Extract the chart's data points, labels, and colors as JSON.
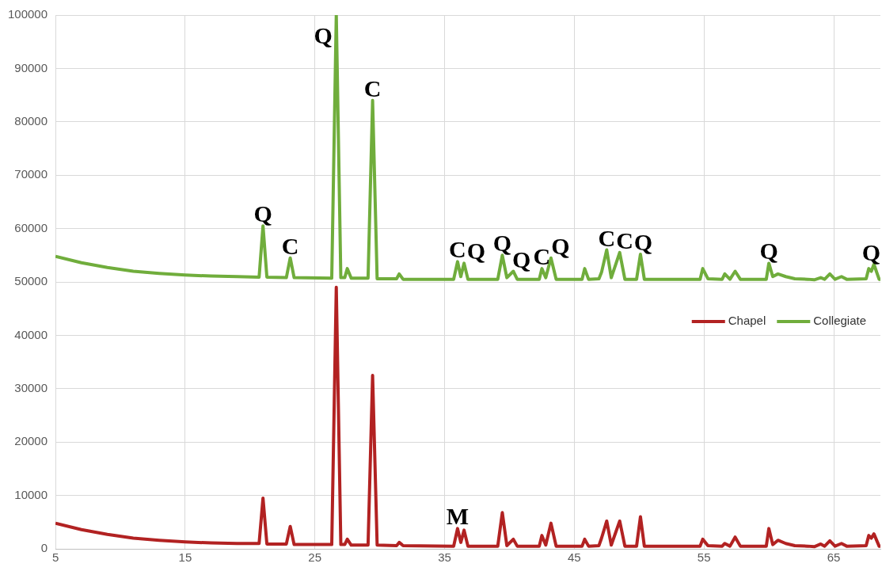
{
  "chart_data": {
    "type": "line",
    "legend": "right",
    "grid": true,
    "marker": "none",
    "line_style": "solid",
    "xlim": [
      5,
      68.6
    ],
    "xticks": [
      5,
      15,
      25,
      35,
      45,
      55,
      65
    ],
    "ylim": [
      0,
      100000
    ],
    "yticks": [
      0,
      10000,
      20000,
      30000,
      40000,
      50000,
      60000,
      70000,
      80000,
      90000,
      100000
    ],
    "x": [
      5,
      7,
      9,
      11,
      13,
      15,
      17,
      19,
      20.7,
      21,
      21.3,
      22.8,
      23.1,
      23.4,
      26.3,
      26.65,
      27.0,
      27.3,
      27.5,
      27.8,
      29.1,
      29.45,
      29.8,
      31.3,
      31.5,
      31.8,
      35.7,
      36.0,
      36.25,
      36.5,
      36.8,
      39.1,
      39.45,
      39.8,
      40.3,
      40.6,
      42.3,
      42.5,
      42.8,
      43.2,
      43.6,
      45.6,
      45.8,
      46.1,
      46.9,
      47.1,
      47.5,
      47.85,
      48.5,
      48.9,
      49.8,
      50.1,
      50.4,
      54.7,
      54.9,
      55.3,
      56.4,
      56.6,
      57.0,
      57.4,
      57.8,
      59.8,
      60.0,
      60.3,
      60.7,
      61.3,
      62,
      63.0,
      63.5,
      64.0,
      64.3,
      64.7,
      65.1,
      65.6,
      66,
      67.5,
      67.7,
      67.9,
      68.1,
      68.5,
      68.6
    ],
    "series": [
      {
        "name": "Chapel",
        "color": "#b22222",
        "values": [
          4800,
          3600,
          2700,
          2000,
          1600,
          1300,
          1100,
          1000,
          1000,
          9500,
          900,
          900,
          4200,
          800,
          800,
          49000,
          800,
          800,
          1800,
          700,
          700,
          32500,
          700,
          600,
          1200,
          600,
          500,
          3800,
          1200,
          3500,
          500,
          500,
          6800,
          600,
          1800,
          500,
          500,
          2500,
          700,
          4800,
          500,
          500,
          1800,
          500,
          600,
          2000,
          5200,
          700,
          5200,
          500,
          500,
          6000,
          500,
          500,
          1800,
          600,
          500,
          1000,
          500,
          2200,
          500,
          500,
          3800,
          800,
          1600,
          1000,
          600,
          500,
          400,
          900,
          500,
          1500,
          500,
          1000,
          500,
          600,
          2500,
          2000,
          2800,
          500,
          500
        ]
      },
      {
        "name": "Collegiate",
        "color": "#70ad3c",
        "values": [
          54800,
          53600,
          52700,
          52000,
          51600,
          51300,
          51100,
          51000,
          50900,
          60500,
          50900,
          50800,
          54500,
          50800,
          50700,
          100000,
          50800,
          50800,
          52500,
          50700,
          50700,
          84000,
          50600,
          50600,
          51500,
          50500,
          50500,
          53800,
          51000,
          53500,
          50500,
          50500,
          55000,
          50800,
          52000,
          50500,
          50500,
          52500,
          50800,
          54500,
          50500,
          50500,
          52500,
          50500,
          50600,
          51800,
          56000,
          50800,
          55500,
          50500,
          50500,
          55200,
          50500,
          50500,
          52500,
          50600,
          50500,
          51500,
          50500,
          52000,
          50500,
          50500,
          53500,
          51000,
          51500,
          51000,
          50600,
          50500,
          50400,
          50800,
          50500,
          51500,
          50500,
          51000,
          50500,
          50600,
          52500,
          52000,
          53300,
          50500,
          50500
        ]
      }
    ],
    "annotations": [
      {
        "text": "Q",
        "x": 21,
        "y": 60500
      },
      {
        "text": "C",
        "x": 23.1,
        "y": 54500
      },
      {
        "text": "Q",
        "x": 26.65,
        "y": 100000
      },
      {
        "text": "C",
        "x": 29.45,
        "y": 84000
      },
      {
        "text": "C",
        "x": 36.0,
        "y": 53800
      },
      {
        "text": "Q",
        "x": 36.5,
        "y": 53500
      },
      {
        "text": "Q",
        "x": 39.45,
        "y": 55000
      },
      {
        "text": "Q",
        "x": 40.3,
        "y": 52000
      },
      {
        "text": "C",
        "x": 42.5,
        "y": 52500
      },
      {
        "text": "Q",
        "x": 43.2,
        "y": 54500
      },
      {
        "text": "C",
        "x": 47.5,
        "y": 56000
      },
      {
        "text": "C",
        "x": 48.5,
        "y": 55500
      },
      {
        "text": "Q",
        "x": 50.1,
        "y": 55200
      },
      {
        "text": "Q",
        "x": 60.0,
        "y": 53500
      },
      {
        "text": "Q",
        "x": 68.1,
        "y": 53300
      },
      {
        "text": "M",
        "x": 36.0,
        "y": 3800
      }
    ]
  }
}
